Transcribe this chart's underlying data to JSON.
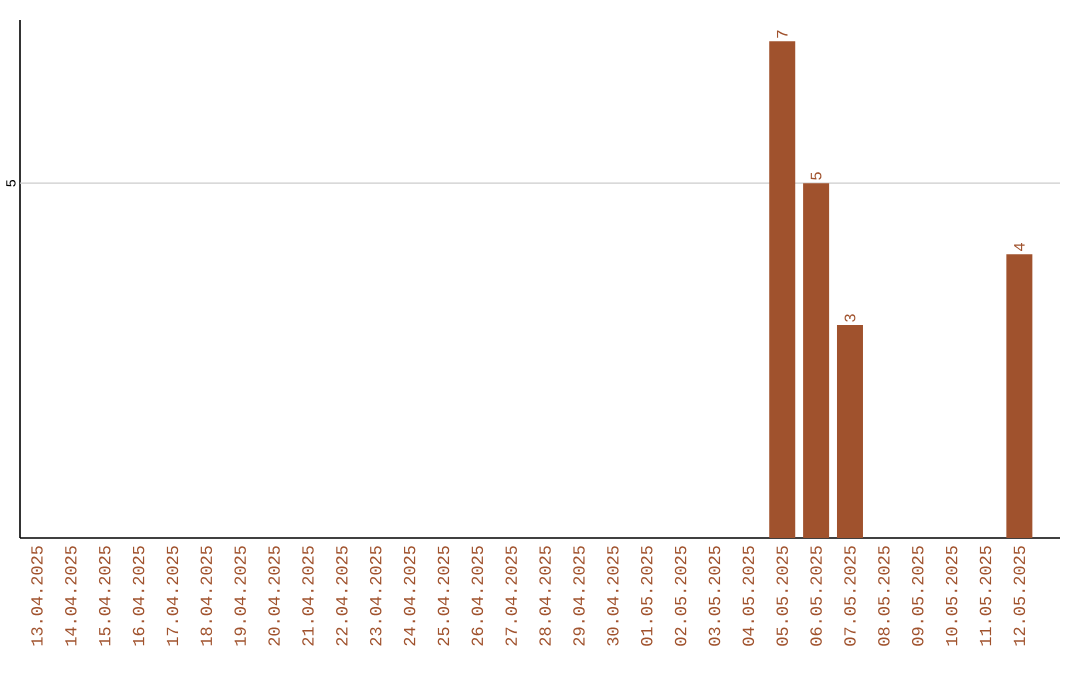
{
  "chart_data": {
    "type": "bar",
    "categories": [
      "13.04.2025",
      "14.04.2025",
      "15.04.2025",
      "16.04.2025",
      "17.04.2025",
      "18.04.2025",
      "19.04.2025",
      "20.04.2025",
      "21.04.2025",
      "22.04.2025",
      "23.04.2025",
      "24.04.2025",
      "25.04.2025",
      "26.04.2025",
      "27.04.2025",
      "28.04.2025",
      "29.04.2025",
      "30.04.2025",
      "01.05.2025",
      "02.05.2025",
      "03.05.2025",
      "04.05.2025",
      "05.05.2025",
      "06.05.2025",
      "07.05.2025",
      "08.05.2025",
      "09.05.2025",
      "10.05.2025",
      "11.05.2025",
      "12.05.2025"
    ],
    "values": [
      null,
      null,
      null,
      null,
      null,
      null,
      null,
      null,
      null,
      null,
      null,
      null,
      null,
      null,
      null,
      null,
      null,
      null,
      null,
      null,
      null,
      null,
      7,
      5,
      3,
      null,
      null,
      null,
      null,
      4
    ],
    "data_labels": true,
    "color": "#a0522d",
    "ylim": [
      0,
      7.3
    ],
    "ref_lines": [
      {
        "axis": "y",
        "value": 5,
        "label": "5",
        "color": "#cccccc"
      }
    ]
  }
}
